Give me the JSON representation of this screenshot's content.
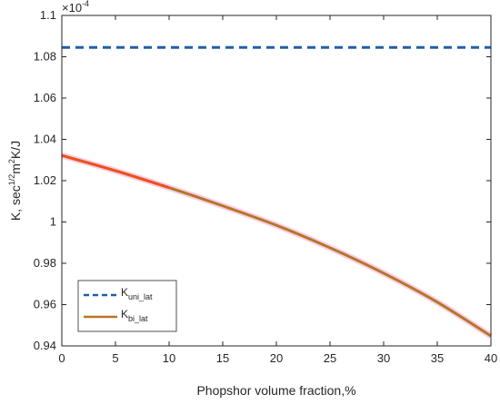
{
  "chart_data": {
    "type": "line",
    "xlabel": "Phopshor volume fraction,%",
    "ylabel": {
      "base": "K, sec",
      "sup1": "1/2",
      "mid": "m",
      "sup2": "2",
      "tail": "K/J"
    },
    "exponent": {
      "base": "×10",
      "power": "-4"
    },
    "xlim": [
      0,
      40
    ],
    "ylim": [
      0.94,
      1.1
    ],
    "y_scale_factor": 0.0001,
    "x_ticks": [
      0,
      5,
      10,
      15,
      20,
      25,
      30,
      35,
      40
    ],
    "y_ticks": [
      0.94,
      0.96,
      0.98,
      1.0,
      1.02,
      1.04,
      1.06,
      1.08,
      1.1
    ],
    "y_tick_labels": [
      "0.94",
      "0.96",
      "0.98",
      "1",
      "1.02",
      "1.04",
      "1.06",
      "1.08",
      "1.1"
    ],
    "grid": false,
    "legend_position": "bottom-left",
    "series": [
      {
        "name": {
          "base": "K",
          "sub": "uni_lat"
        },
        "style": "dashed",
        "color": "#1f5fa8",
        "x": [
          0,
          40
        ],
        "y": [
          1.0845,
          1.0845
        ]
      },
      {
        "name": {
          "base": "K",
          "sub": "bi_lat"
        },
        "style": "solid",
        "color": "#b8742a",
        "highlight_color": "#f0501e",
        "x": [
          0,
          5,
          10,
          15,
          20,
          25,
          30,
          35,
          40
        ],
        "y": [
          1.0322,
          1.0248,
          1.0166,
          1.0078,
          0.9984,
          0.9875,
          0.9752,
          0.9612,
          0.9448
        ]
      }
    ]
  }
}
